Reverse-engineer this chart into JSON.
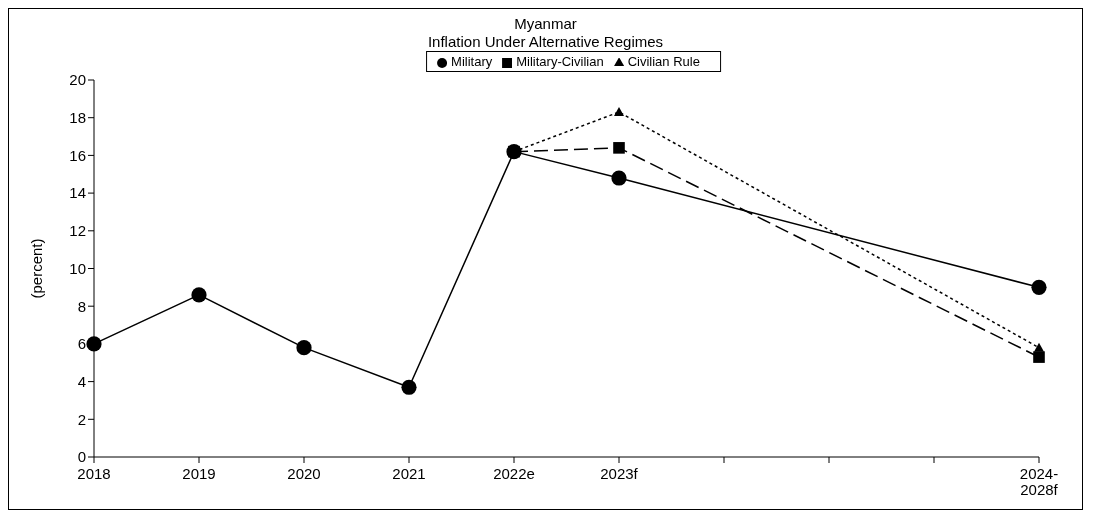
{
  "chart_data": {
    "type": "line",
    "title": "Myanmar",
    "subtitle": "Inflation Under Alternative Regimes",
    "ylabel": "(percent)",
    "categories": [
      "2018",
      "2019",
      "2020",
      "2021",
      "2022e",
      "2023f",
      null,
      null,
      null,
      "2024-2028f"
    ],
    "series": [
      {
        "name": "Military",
        "color": "#000000",
        "marker": "circle",
        "line_style": "solid",
        "values": [
          6.0,
          8.6,
          5.8,
          3.7,
          16.2,
          14.8,
          null,
          null,
          null,
          9.0
        ]
      },
      {
        "name": "Military-Civilian",
        "color": "#000000",
        "marker": "square",
        "line_style": "dashed",
        "values": [
          null,
          null,
          null,
          null,
          16.2,
          16.4,
          null,
          null,
          null,
          5.3
        ]
      },
      {
        "name": "Civilian Rule",
        "color": "#000000",
        "marker": "triangle",
        "line_style": "dotted",
        "values": [
          null,
          null,
          null,
          null,
          16.2,
          18.3,
          null,
          null,
          null,
          5.8
        ]
      }
    ],
    "ylim": [
      0,
      20
    ],
    "yticks": [
      0,
      2,
      4,
      6,
      8,
      10,
      12,
      14,
      16,
      18,
      20
    ],
    "grid": false,
    "legend": "top"
  }
}
